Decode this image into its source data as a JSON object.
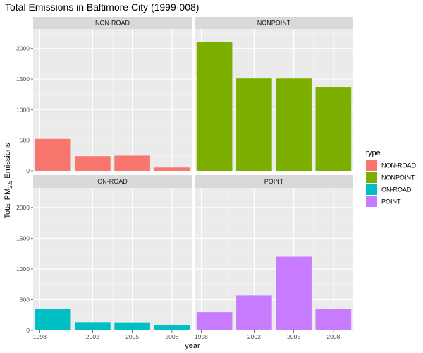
{
  "chart_data": {
    "type": "bar",
    "title": "Total Emissions in Baltimore City (1999-008)",
    "xlabel": "year",
    "ylabel_prefix": "Total PM",
    "ylabel_sub": "2.5",
    "ylabel_suffix": " Emissions",
    "ylim": [
      0,
      2320
    ],
    "yticks": [
      0,
      500,
      1000,
      1500,
      2000
    ],
    "x_tick_labels": [
      "1998",
      "2002",
      "2005",
      "2008"
    ],
    "x_tick_positions": [
      1998,
      2002,
      2005,
      2008
    ],
    "bar_years": [
      1999,
      2002,
      2005,
      2008
    ],
    "bar_width_years": 2.7,
    "xlim": [
      1997.5,
      2009.5
    ],
    "grid": true,
    "legend_position": "right",
    "legend_title": "type",
    "panels": [
      {
        "name": "NON-ROAD",
        "color": "#F8766D",
        "values": [
          522,
          240,
          249,
          55
        ]
      },
      {
        "name": "NONPOINT",
        "color": "#7CAE00",
        "values": [
          2108,
          1510,
          1509,
          1373
        ]
      },
      {
        "name": "ON-ROAD",
        "color": "#00BFC4",
        "values": [
          347,
          134,
          130,
          88
        ]
      },
      {
        "name": "POINT",
        "color": "#C77CFF",
        "values": [
          297,
          570,
          1200,
          345
        ]
      }
    ]
  }
}
